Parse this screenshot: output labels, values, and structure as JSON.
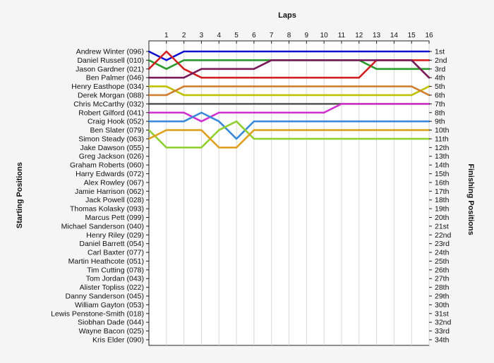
{
  "chart_data": {
    "type": "line",
    "title": "",
    "xlabel": "Laps",
    "ylabel_left": "Starting Positions",
    "ylabel_right": "Finishing Positions",
    "x_ticks": [
      "1",
      "2",
      "3",
      "4",
      "5",
      "6",
      "7",
      "8",
      "9",
      "10",
      "11",
      "12",
      "13",
      "14",
      "15",
      "16"
    ],
    "xlim": [
      0,
      16
    ],
    "ylim": [
      1,
      34
    ],
    "grid": true,
    "starting_labels": [
      "Andrew Winter (096)",
      "Daniel Russell (010)",
      "Jason Gardner (021)",
      "Ben Palmer (046)",
      "Henry Easthope (034)",
      "Derek Morgan (088)",
      "Chris McCarthy (032)",
      "Robert Gilford (041)",
      "Craig Hook (052)",
      "Ben Slater (079)",
      "Simon Steady (063)",
      "Jake Dawson (055)",
      "Greg Jackson (026)",
      "Graham Roberts (060)",
      "Harry Edwards (072)",
      "Alex Rowley (067)",
      "Jamie Harrison (062)",
      "Jack Powell (028)",
      "Thomas Kolasky (093)",
      "Marcus Pett (099)",
      "Michael Sanderson (040)",
      "Henry Riley (029)",
      "Daniel Barrett (054)",
      "Carl Baxter (077)",
      "Martin Heathcote (051)",
      "Tim Cutting (078)",
      "Tom Jordan (043)",
      "Alister Topliss (022)",
      "Danny Sanderson (045)",
      "William Gayton (053)",
      "Lewis Penstone-Smith (018)",
      "Siobhan Dade (044)",
      "Wayne Bacon (025)",
      "Kris Elder (090)"
    ],
    "finishing_labels": [
      "1st",
      "2nd",
      "3rd",
      "4th",
      "5th",
      "6th",
      "7th",
      "8th",
      "9th",
      "10th",
      "11th",
      "12th",
      "13th",
      "14th",
      "15th",
      "16th",
      "17th",
      "18th",
      "19th",
      "20th",
      "21st",
      "22nd",
      "23rd",
      "24th",
      "25th",
      "26th",
      "27th",
      "28th",
      "29th",
      "30th",
      "31st",
      "32nd",
      "33rd",
      "34th"
    ],
    "series": [
      {
        "color": "#1010d0",
        "positions": [
          1,
          2,
          1,
          1,
          1,
          1,
          1,
          1,
          1,
          1,
          1,
          1,
          1,
          1,
          1,
          1,
          1
        ]
      },
      {
        "color": "#2a9a2a",
        "positions": [
          2,
          3,
          2,
          2,
          2,
          2,
          2,
          2,
          2,
          2,
          2,
          2,
          2,
          3,
          3,
          3,
          3
        ]
      },
      {
        "color": "#d02020",
        "positions": [
          3,
          1,
          3,
          4,
          4,
          4,
          4,
          4,
          4,
          4,
          4,
          4,
          4,
          2,
          2,
          2,
          2
        ]
      },
      {
        "color": "#7a1a5a",
        "positions": [
          4,
          4,
          4,
          3,
          3,
          3,
          3,
          2,
          2,
          2,
          2,
          2,
          2,
          2,
          2,
          2,
          4
        ]
      },
      {
        "color": "#c0c000",
        "positions": [
          5,
          5,
          6,
          6,
          6,
          6,
          6,
          6,
          6,
          6,
          6,
          6,
          6,
          6,
          6,
          6,
          5
        ]
      },
      {
        "color": "#d08030",
        "positions": [
          6,
          6,
          5,
          5,
          5,
          5,
          5,
          5,
          5,
          5,
          5,
          5,
          5,
          5,
          5,
          5,
          6
        ]
      },
      {
        "color": "#555555",
        "positions": [
          7,
          7,
          7,
          7,
          7,
          7,
          7,
          7,
          7,
          7,
          7,
          7,
          7,
          7,
          7,
          7,
          7
        ]
      },
      {
        "color": "#d030d0",
        "positions": [
          8,
          8,
          8,
          9,
          8,
          8,
          8,
          8,
          8,
          8,
          8,
          7,
          7,
          7,
          7,
          7,
          7
        ]
      },
      {
        "color": "#3a8ad8",
        "positions": [
          9,
          9,
          9,
          8,
          9,
          11,
          9,
          9,
          9,
          9,
          9,
          9,
          9,
          9,
          9,
          9,
          9
        ]
      },
      {
        "color": "#90d030",
        "positions": [
          10,
          12,
          12,
          12,
          10,
          9,
          11,
          11,
          11,
          11,
          11,
          11,
          11,
          11,
          11,
          11,
          11
        ]
      },
      {
        "color": "#e0a020",
        "positions": [
          11,
          10,
          10,
          10,
          12,
          12,
          10,
          10,
          10,
          10,
          10,
          10,
          10,
          10,
          10,
          10,
          10
        ]
      }
    ]
  }
}
